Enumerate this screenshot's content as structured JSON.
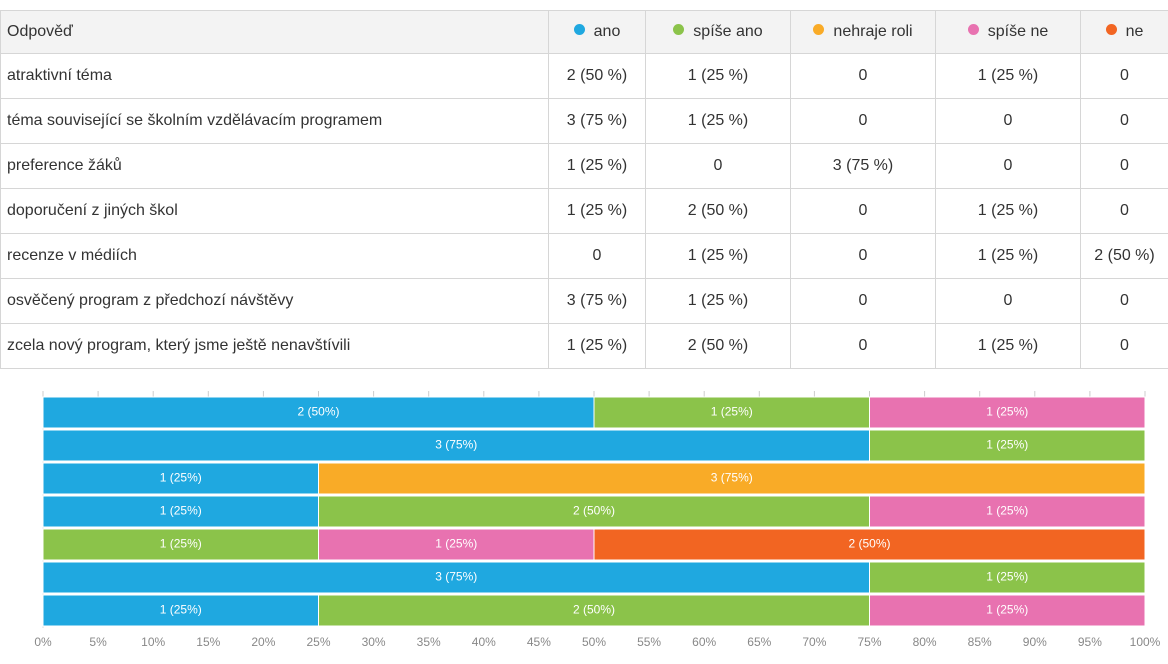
{
  "table": {
    "header": "Odpověď",
    "rows": [
      [
        "atraktivní téma",
        "2 (50 %)",
        "1 (25 %)",
        "0",
        "1 (25 %)",
        "0"
      ],
      [
        "téma související se školním vzdělávacím programem",
        "3 (75 %)",
        "1 (25 %)",
        "0",
        "0",
        "0"
      ],
      [
        "preference žáků",
        "1 (25 %)",
        "0",
        "3 (75 %)",
        "0",
        "0"
      ],
      [
        "doporučení z jiných škol",
        "1 (25 %)",
        "2 (50 %)",
        "0",
        "1 (25 %)",
        "0"
      ],
      [
        "recenze v médiích",
        "0",
        "1 (25 %)",
        "0",
        "1 (25 %)",
        "2 (50 %)"
      ],
      [
        "osvěčený program z předchozí návštěvy",
        "3 (75 %)",
        "1 (25 %)",
        "0",
        "0",
        "0"
      ],
      [
        "zcela nový program, který jsme ještě nenavštívili",
        "1 (25 %)",
        "2 (50 %)",
        "0",
        "1 (25 %)",
        "0"
      ]
    ]
  },
  "chart_data": {
    "type": "bar",
    "orientation": "horizontal",
    "stacked": true,
    "series": [
      {
        "name": "ano",
        "color": "#1fa8e0",
        "values": [
          50,
          75,
          25,
          25,
          0,
          75,
          25
        ],
        "value_labels": [
          "2 (50%)",
          "3 (75%)",
          "1 (25%)",
          "1 (25%)",
          null,
          "3 (75%)",
          "1 (25%)"
        ]
      },
      {
        "name": "spíše ano",
        "color": "#8bc34a",
        "values": [
          25,
          25,
          0,
          50,
          25,
          25,
          50
        ],
        "value_labels": [
          "1 (25%)",
          "1 (25%)",
          null,
          "2 (50%)",
          "1 (25%)",
          "1 (25%)",
          "2 (50%)"
        ]
      },
      {
        "name": "nehraje roli",
        "color": "#f9ab27",
        "values": [
          0,
          0,
          75,
          0,
          0,
          0,
          0
        ],
        "value_labels": [
          null,
          null,
          "3 (75%)",
          null,
          null,
          null,
          null
        ]
      },
      {
        "name": "spíše ne",
        "color": "#e872b0",
        "values": [
          25,
          0,
          0,
          25,
          25,
          0,
          25
        ],
        "value_labels": [
          "1 (25%)",
          null,
          null,
          "1 (25%)",
          "1 (25%)",
          null,
          "1 (25%)"
        ]
      },
      {
        "name": "ne",
        "color": "#f26522",
        "values": [
          0,
          0,
          0,
          0,
          50,
          0,
          0
        ],
        "value_labels": [
          null,
          null,
          null,
          null,
          "2 (50%)",
          null,
          null
        ]
      }
    ],
    "xlim": [
      0,
      100
    ],
    "xticks": [
      {
        "value": 0,
        "label": "0%"
      },
      {
        "value": 5,
        "label": "5%"
      },
      {
        "value": 10,
        "label": "10%"
      },
      {
        "value": 15,
        "label": "15%"
      },
      {
        "value": 20,
        "label": "20%"
      },
      {
        "value": 25,
        "label": "25%"
      },
      {
        "value": 30,
        "label": "30%"
      },
      {
        "value": 35,
        "label": "35%"
      },
      {
        "value": 40,
        "label": "40%"
      },
      {
        "value": 45,
        "label": "45%"
      },
      {
        "value": 50,
        "label": "50%"
      },
      {
        "value": 55,
        "label": "55%"
      },
      {
        "value": 60,
        "label": "60%"
      },
      {
        "value": 65,
        "label": "65%"
      },
      {
        "value": 70,
        "label": "70%"
      },
      {
        "value": 75,
        "label": "75%"
      },
      {
        "value": 80,
        "label": "80%"
      },
      {
        "value": 85,
        "label": "85%"
      },
      {
        "value": 90,
        "label": "90%"
      },
      {
        "value": 95,
        "label": "95%"
      },
      {
        "value": 100,
        "label": "100%"
      }
    ]
  }
}
